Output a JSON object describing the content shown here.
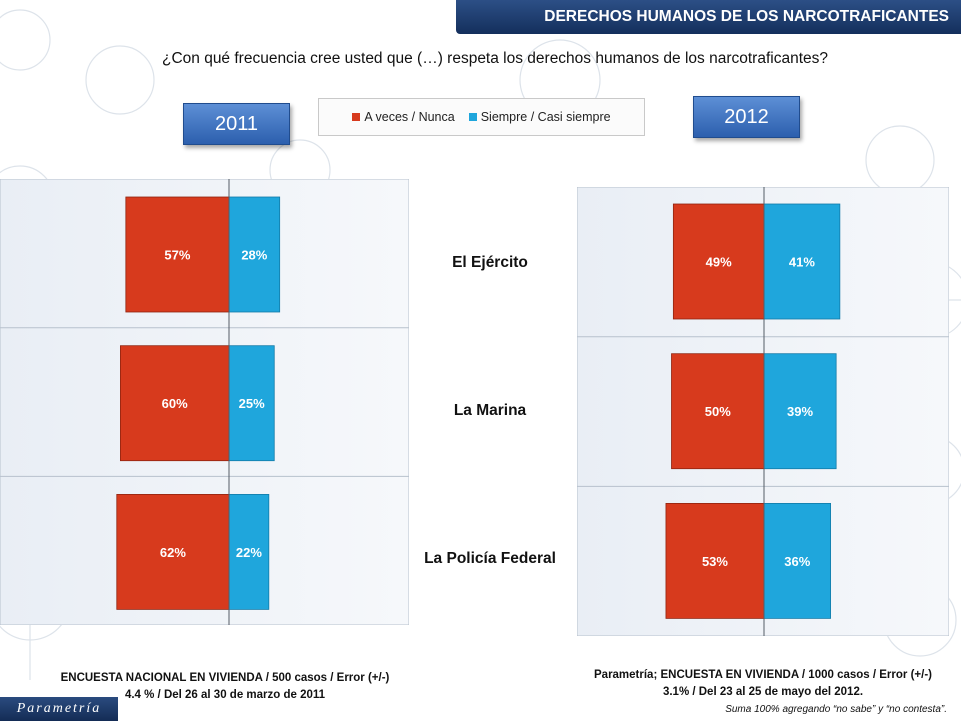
{
  "header": {
    "title": "DERECHOS HUMANOS DE LOS NARCOTRAFICANTES"
  },
  "question": "¿Con qué frecuencia cree usted que (…) respeta los derechos humanos de los narcotraficantes?",
  "years": {
    "left": "2011",
    "right": "2012"
  },
  "legend": [
    {
      "label": "A veces / Nunca",
      "color": "#d73a1d"
    },
    {
      "label": "Siempre / Casi siempre",
      "color": "#1fa6dc"
    }
  ],
  "chart_data": [
    {
      "type": "bar",
      "title": "2011",
      "categories": [
        "El Ejército",
        "La Marina",
        "La Policía Federal"
      ],
      "series": [
        {
          "name": "A veces / Nunca",
          "values": [
            57,
            60,
            62
          ],
          "labels": [
            "57%",
            "60%",
            "62%"
          ],
          "color": "#d73a1d"
        },
        {
          "name": "Siempre / Casi siempre",
          "values": [
            28,
            25,
            22
          ],
          "labels": [
            "28%",
            "25%",
            "22%"
          ],
          "color": "#1fa6dc"
        }
      ],
      "orientation": "diverging-horizontal"
    },
    {
      "type": "bar",
      "title": "2012",
      "categories": [
        "El Ejército",
        "La Marina",
        "La Policía Federal"
      ],
      "series": [
        {
          "name": "A veces / Nunca",
          "values": [
            49,
            50,
            53
          ],
          "labels": [
            "49%",
            "50%",
            "53%"
          ],
          "color": "#d73a1d"
        },
        {
          "name": "Siempre / Casi siempre",
          "values": [
            41,
            39,
            36
          ],
          "labels": [
            "41%",
            "39%",
            "36%"
          ],
          "color": "#1fa6dc"
        }
      ],
      "orientation": "diverging-horizontal"
    }
  ],
  "footnotes": {
    "left_line1": "ENCUESTA NACIONAL EN VIVIENDA / 500 casos / Error (+/-)",
    "left_line2": "4.4 % / Del 26 al 30 de marzo de 2011",
    "right_line1": "Parametría; ENCUESTA EN VIVIENDA / 1000 casos / Error (+/-)",
    "right_line2": "3.1% / Del 23 al 25 de mayo del 2012."
  },
  "brand": "Parametría",
  "note": "Suma 100%  agregando “no sabe” y “no contesta”."
}
